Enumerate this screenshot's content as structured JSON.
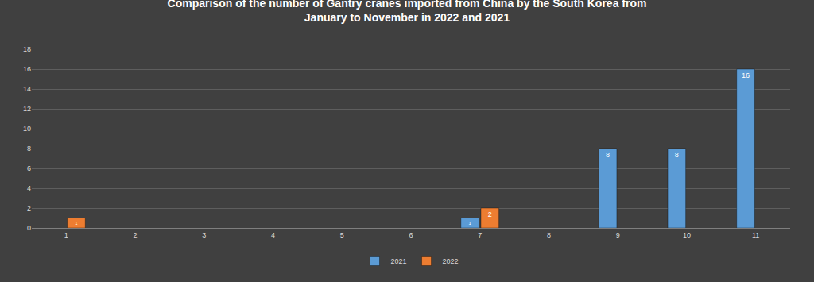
{
  "chart_data": {
    "type": "bar",
    "title": "Comparison of the number of Gantry cranes imported from China by the South Korea from January to November in 2022 and 2021",
    "categories": [
      "1",
      "2",
      "3",
      "4",
      "5",
      "6",
      "7",
      "8",
      "9",
      "10",
      "11"
    ],
    "series": [
      {
        "name": "2021",
        "color": "#5b9bd5",
        "values": [
          null,
          null,
          null,
          null,
          null,
          null,
          1,
          null,
          8,
          8,
          16
        ]
      },
      {
        "name": "2022",
        "color": "#ed7d31",
        "values": [
          1,
          null,
          null,
          null,
          null,
          null,
          2,
          null,
          null,
          null,
          null
        ]
      }
    ],
    "ylim": [
      0,
      18
    ],
    "yticks": [
      0,
      2,
      4,
      6,
      8,
      10,
      12,
      14,
      16,
      18
    ],
    "grid": true,
    "legend": "bottom",
    "data_labels": true
  }
}
